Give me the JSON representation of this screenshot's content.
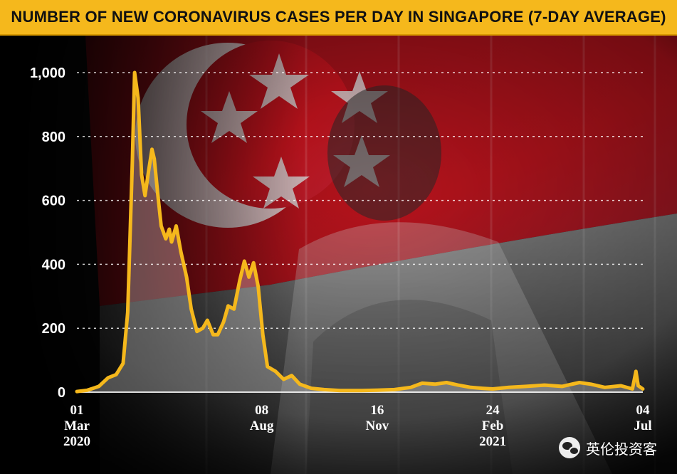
{
  "title": "NUMBER OF NEW CORONAVIRUS CASES PER DAY IN SINGAPORE (7-DAY AVERAGE)",
  "watermark": {
    "text": "英伦投资客",
    "icon": "wechat-icon"
  },
  "colors": {
    "title_bg": "#f5b81c",
    "line": "#f5b81c",
    "text": "#ffffff",
    "flag_red": "#c8141e",
    "gridline": "#ffffff"
  },
  "chart_data": {
    "type": "line",
    "title": "NUMBER OF NEW CORONAVIRUS CASES PER DAY IN SINGAPORE (7-DAY AVERAGE)",
    "xlabel": "",
    "ylabel": "",
    "ylim": [
      0,
      1000
    ],
    "yticks": [
      0,
      200,
      400,
      600,
      800,
      1000
    ],
    "ytick_labels": [
      "0",
      "200",
      "400",
      "600",
      "800",
      "1,000"
    ],
    "xlim": [
      "2020-03-01",
      "2021-07-04"
    ],
    "xticks": [
      {
        "date": "2020-03-01",
        "label1": "01",
        "label2": "Mar",
        "label3": "2020"
      },
      {
        "date": "2020-08-08",
        "label1": "08",
        "label2": "Aug",
        "label3": ""
      },
      {
        "date": "2020-11-16",
        "label1": "16",
        "label2": "Nov",
        "label3": ""
      },
      {
        "date": "2021-02-24",
        "label1": "24",
        "label2": "Feb",
        "label3": "2021"
      },
      {
        "date": "2021-07-04",
        "label1": "04",
        "label2": "Jul",
        "label3": ""
      }
    ],
    "grid": true,
    "legend": "none",
    "series": [
      {
        "values": [
          [
            "2020-03-01",
            2
          ],
          [
            "2020-03-10",
            6
          ],
          [
            "2020-03-20",
            18
          ],
          [
            "2020-03-28",
            45
          ],
          [
            "2020-04-04",
            55
          ],
          [
            "2020-04-10",
            90
          ],
          [
            "2020-04-14",
            250
          ],
          [
            "2020-04-16",
            480
          ],
          [
            "2020-04-18",
            720
          ],
          [
            "2020-04-20",
            1000
          ],
          [
            "2020-04-23",
            920
          ],
          [
            "2020-04-26",
            680
          ],
          [
            "2020-04-29",
            615
          ],
          [
            "2020-05-02",
            690
          ],
          [
            "2020-05-05",
            760
          ],
          [
            "2020-05-07",
            730
          ],
          [
            "2020-05-10",
            620
          ],
          [
            "2020-05-13",
            520
          ],
          [
            "2020-05-17",
            480
          ],
          [
            "2020-05-20",
            510
          ],
          [
            "2020-05-22",
            470
          ],
          [
            "2020-05-26",
            520
          ],
          [
            "2020-05-30",
            440
          ],
          [
            "2020-06-04",
            360
          ],
          [
            "2020-06-08",
            260
          ],
          [
            "2020-06-13",
            190
          ],
          [
            "2020-06-18",
            200
          ],
          [
            "2020-06-22",
            225
          ],
          [
            "2020-06-27",
            180
          ],
          [
            "2020-07-01",
            180
          ],
          [
            "2020-07-06",
            220
          ],
          [
            "2020-07-10",
            270
          ],
          [
            "2020-07-15",
            260
          ],
          [
            "2020-07-20",
            350
          ],
          [
            "2020-07-24",
            410
          ],
          [
            "2020-07-28",
            360
          ],
          [
            "2020-08-01",
            405
          ],
          [
            "2020-08-05",
            330
          ],
          [
            "2020-08-09",
            180
          ],
          [
            "2020-08-13",
            80
          ],
          [
            "2020-08-20",
            65
          ],
          [
            "2020-08-27",
            40
          ],
          [
            "2020-09-03",
            52
          ],
          [
            "2020-09-10",
            25
          ],
          [
            "2020-09-20",
            12
          ],
          [
            "2020-10-01",
            8
          ],
          [
            "2020-10-15",
            5
          ],
          [
            "2020-11-01",
            5
          ],
          [
            "2020-11-16",
            6
          ],
          [
            "2020-12-01",
            8
          ],
          [
            "2020-12-15",
            15
          ],
          [
            "2020-12-25",
            28
          ],
          [
            "2021-01-05",
            25
          ],
          [
            "2021-01-15",
            30
          ],
          [
            "2021-01-25",
            22
          ],
          [
            "2021-02-05",
            15
          ],
          [
            "2021-02-15",
            12
          ],
          [
            "2021-02-24",
            10
          ],
          [
            "2021-03-10",
            15
          ],
          [
            "2021-03-25",
            18
          ],
          [
            "2021-04-10",
            22
          ],
          [
            "2021-04-25",
            18
          ],
          [
            "2021-05-10",
            30
          ],
          [
            "2021-05-20",
            25
          ],
          [
            "2021-06-01",
            15
          ],
          [
            "2021-06-15",
            20
          ],
          [
            "2021-06-25",
            10
          ],
          [
            "2021-06-28",
            65
          ],
          [
            "2021-06-30",
            20
          ],
          [
            "2021-07-04",
            10
          ]
        ]
      }
    ]
  }
}
